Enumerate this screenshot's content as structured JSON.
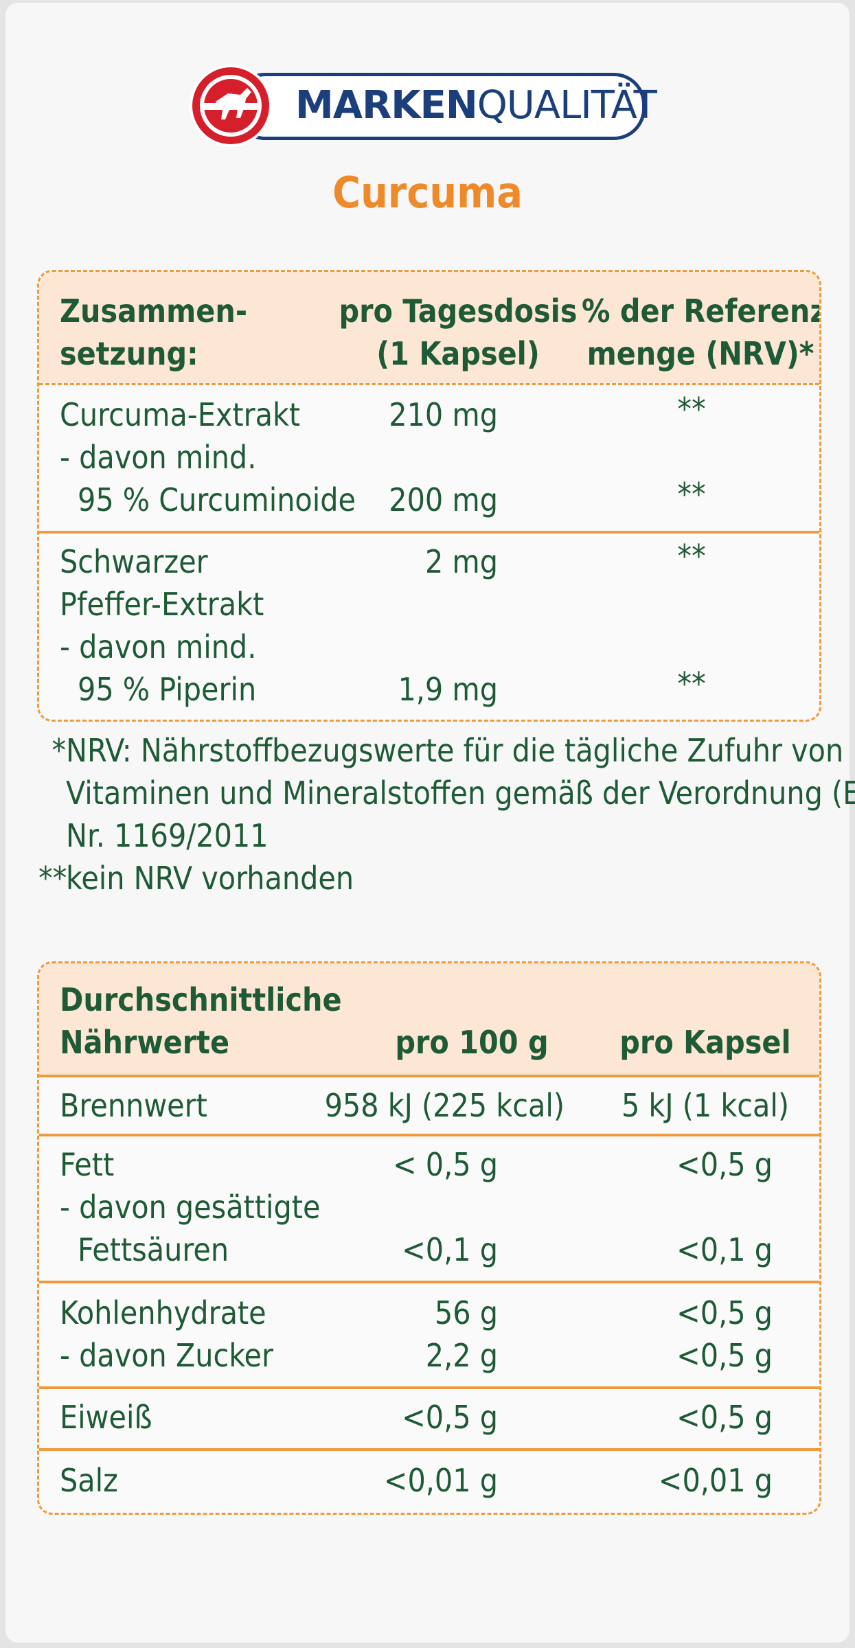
{
  "brand": {
    "logo_bold": "MARKEN",
    "logo_light": "QUALITÄT",
    "colors": {
      "blue": "#1c3f7c",
      "red": "#d51f2b",
      "orange": "#ef8a2a",
      "green": "#1f5a36",
      "header_bg": "#fce6d4"
    }
  },
  "product_title": "Curcuma",
  "composition_table": {
    "headers": {
      "col1_line1": "Zusammen-",
      "col1_line2": "setzung:",
      "col2_line1": "pro Tagesdosis",
      "col2_line2": "(1 Kapsel)",
      "col3_line1": "% der Referenz-",
      "col3_line2": "menge (NRV)*"
    },
    "groups": [
      {
        "lines": [
          {
            "label": "Curcuma-Extrakt",
            "amount": "210 mg",
            "nrv": "**"
          },
          {
            "label": "- davon mind.",
            "amount": "",
            "nrv": ""
          },
          {
            "label": "95 % Curcuminoide",
            "amount": "200 mg",
            "nrv": "**",
            "indent": true
          }
        ]
      },
      {
        "lines": [
          {
            "label": "Schwarzer",
            "amount": "2 mg",
            "nrv": "**"
          },
          {
            "label": "Pfeffer-Extrakt",
            "amount": "",
            "nrv": ""
          },
          {
            "label": "- davon mind.",
            "amount": "",
            "nrv": ""
          },
          {
            "label": "95 % Piperin",
            "amount": "1,9 mg",
            "nrv": "**",
            "indent": true
          }
        ]
      }
    ]
  },
  "footnotes": [
    {
      "mark": "*",
      "lines": [
        "NRV: Nährstoffbezugswerte für die tägliche Zufuhr von",
        "Vitaminen und Mineralstoffen gemäß der Verordnung (EU)",
        "Nr. 1169/2011"
      ]
    },
    {
      "mark": "**",
      "lines": [
        "kein NRV vorhanden"
      ]
    }
  ],
  "nutrition_table": {
    "headers": {
      "col1_line1": "Durchschnittliche",
      "col1_line2": "Nährwerte",
      "col2": "pro 100 g",
      "col3": "pro Kapsel"
    },
    "groups": [
      {
        "lines": [
          {
            "label": "Brennwert",
            "per100": "958 kJ (225 kcal)",
            "perCap": "5 kJ (1 kcal)"
          }
        ]
      },
      {
        "lines": [
          {
            "label": "Fett",
            "per100": "< 0,5 g",
            "perCap": "<0,5 g"
          },
          {
            "label": "- davon gesättigte",
            "per100": "",
            "perCap": ""
          },
          {
            "label": "Fettsäuren",
            "per100": "<0,1 g",
            "perCap": "<0,1 g",
            "indent": true
          }
        ]
      },
      {
        "lines": [
          {
            "label": "Kohlenhydrate",
            "per100": "56 g",
            "perCap": "<0,5 g"
          },
          {
            "label": "- davon Zucker",
            "per100": "2,2 g",
            "perCap": "<0,5 g"
          }
        ]
      },
      {
        "lines": [
          {
            "label": "Eiweiß",
            "per100": "<0,5 g",
            "perCap": "<0,5 g"
          }
        ]
      },
      {
        "lines": [
          {
            "label": "Salz",
            "per100": "<0,01 g",
            "perCap": "<0,01 g"
          }
        ]
      }
    ]
  }
}
